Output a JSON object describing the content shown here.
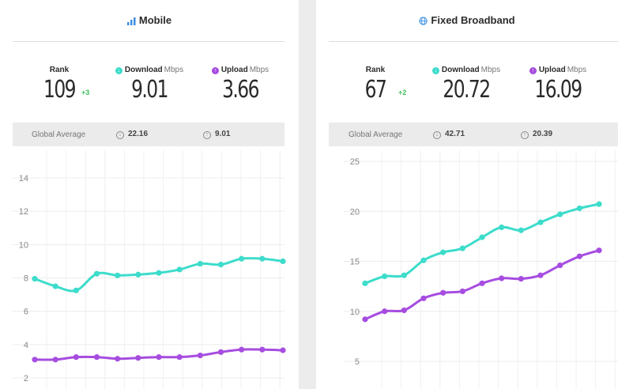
{
  "panels": [
    {
      "title": "Mobile",
      "title_icon": "bar-chart-icon",
      "rank_label": "Rank",
      "rank_value": "109",
      "rank_change": "+3",
      "download_label": "Download",
      "download_unit": "Mbps",
      "download_value": "9.01",
      "upload_label": "Upload",
      "upload_unit": "Mbps",
      "upload_value": "3.66",
      "global_average_label": "Global Average",
      "global_download": "22.16",
      "global_upload": "9.01"
    },
    {
      "title": "Fixed Broadband",
      "title_icon": "globe-icon",
      "rank_label": "Rank",
      "rank_value": "67",
      "rank_change": "+2",
      "download_label": "Download",
      "download_unit": "Mbps",
      "download_value": "20.72",
      "upload_label": "Upload",
      "upload_unit": "Mbps",
      "upload_value": "16.09",
      "global_average_label": "Global Average",
      "global_download": "42.71",
      "global_upload": "20.39"
    }
  ],
  "colors": {
    "download": "#3ddccb",
    "upload": "#a64de0",
    "rank_change": "#3ec05a"
  },
  "chart_data": [
    {
      "type": "line",
      "title": "",
      "xlabel": "",
      "ylabel": "",
      "ylim": [
        2,
        14
      ],
      "yticks": [
        2,
        4,
        6,
        8,
        10,
        12,
        14
      ],
      "grid": true,
      "series": [
        {
          "key": "download",
          "values": [
            7.95,
            7.5,
            7.25,
            8.25,
            8.15,
            8.2,
            8.3,
            8.5,
            8.85,
            8.8,
            9.15,
            9.15,
            9.0
          ]
        },
        {
          "key": "upload",
          "values": [
            3.1,
            3.1,
            3.25,
            3.25,
            3.15,
            3.2,
            3.25,
            3.25,
            3.35,
            3.55,
            3.7,
            3.7,
            3.66
          ]
        }
      ]
    },
    {
      "type": "line",
      "title": "",
      "xlabel": "",
      "ylabel": "",
      "ylim": [
        5,
        25
      ],
      "yticks": [
        5,
        10,
        15,
        20,
        25
      ],
      "grid": true,
      "series": [
        {
          "key": "download",
          "values": [
            12.8,
            13.5,
            13.6,
            15.1,
            15.9,
            16.3,
            17.4,
            18.4,
            18.1,
            18.9,
            19.7,
            20.3,
            20.72
          ]
        },
        {
          "key": "upload",
          "values": [
            9.2,
            10.0,
            10.1,
            11.3,
            11.85,
            12.0,
            12.8,
            13.3,
            13.25,
            13.6,
            14.6,
            15.5,
            16.09
          ]
        }
      ]
    }
  ]
}
